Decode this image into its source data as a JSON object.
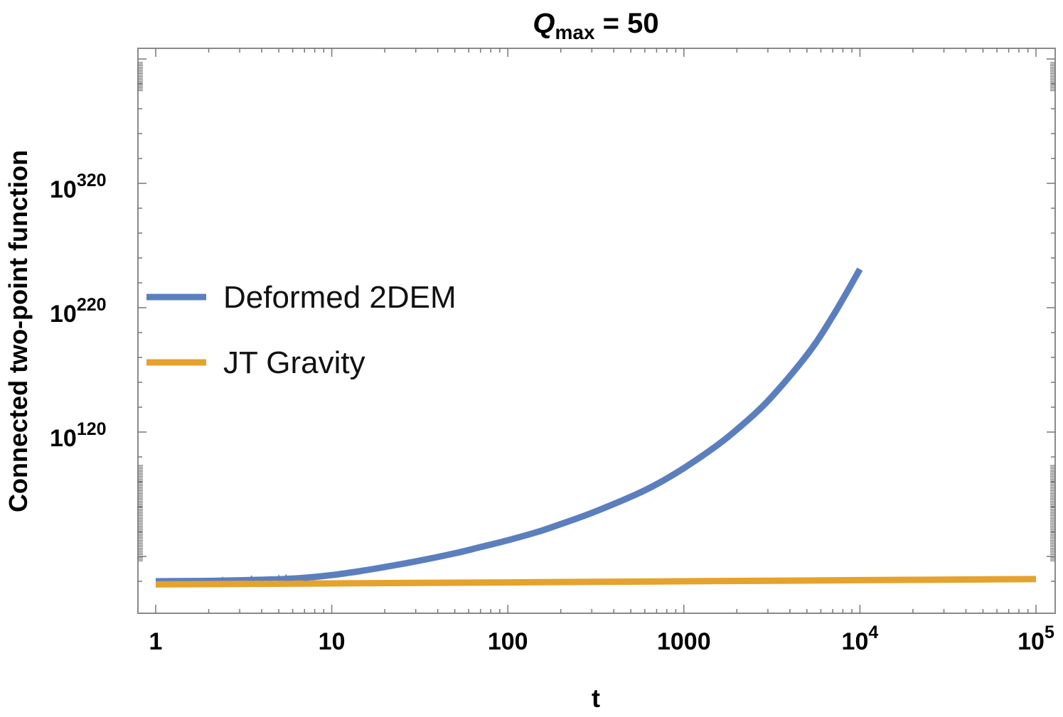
{
  "chart_data": {
    "type": "line",
    "title": {
      "main": "Q",
      "subscript": "max",
      "suffix": " = 50"
    },
    "xlabel": "t",
    "ylabel": "Connected two-point function",
    "x_scale": "log",
    "y_scale": "log",
    "xlim": [
      1,
      100000
    ],
    "x_ticks": [
      {
        "value": 1,
        "base": "1",
        "exp": ""
      },
      {
        "value": 10,
        "base": "10",
        "exp": ""
      },
      {
        "value": 100,
        "base": "100",
        "exp": ""
      },
      {
        "value": 1000,
        "base": "1000",
        "exp": ""
      },
      {
        "value": 10000,
        "base": "10",
        "exp": "4"
      },
      {
        "value": 100000,
        "base": "10",
        "exp": "5"
      }
    ],
    "y_ticks": [
      {
        "log10": 120,
        "base": "10",
        "exp": "120"
      },
      {
        "log10": 220,
        "base": "10",
        "exp": "220"
      },
      {
        "log10": 320,
        "base": "10",
        "exp": "320"
      }
    ],
    "legend_position": "center-left",
    "grid": false,
    "series": [
      {
        "name": "Deformed 2DEM",
        "color": "#5b7fbe",
        "points_log10": [
          [
            1,
            0
          ],
          [
            2,
            0.3
          ],
          [
            3,
            0.8
          ],
          [
            5,
            1.6
          ],
          [
            7,
            2.8
          ],
          [
            10,
            5
          ],
          [
            15,
            8.5
          ],
          [
            20,
            11.5
          ],
          [
            30,
            16
          ],
          [
            50,
            22.5
          ],
          [
            70,
            27.5
          ],
          [
            100,
            33
          ],
          [
            150,
            40
          ],
          [
            200,
            46
          ],
          [
            300,
            55
          ],
          [
            500,
            68
          ],
          [
            700,
            78
          ],
          [
            1000,
            91
          ],
          [
            1500,
            108
          ],
          [
            2000,
            122
          ],
          [
            3000,
            145
          ],
          [
            5000,
            182
          ],
          [
            7000,
            213
          ],
          [
            10000,
            251
          ]
        ]
      },
      {
        "name": "JT Gravity",
        "color": "#e5a22c",
        "points_log10": [
          [
            1,
            -2.5
          ],
          [
            10,
            -1.7
          ],
          [
            100,
            -0.9
          ],
          [
            1000,
            0
          ],
          [
            10000,
            0.9
          ],
          [
            100000,
            1.8
          ]
        ]
      }
    ]
  }
}
